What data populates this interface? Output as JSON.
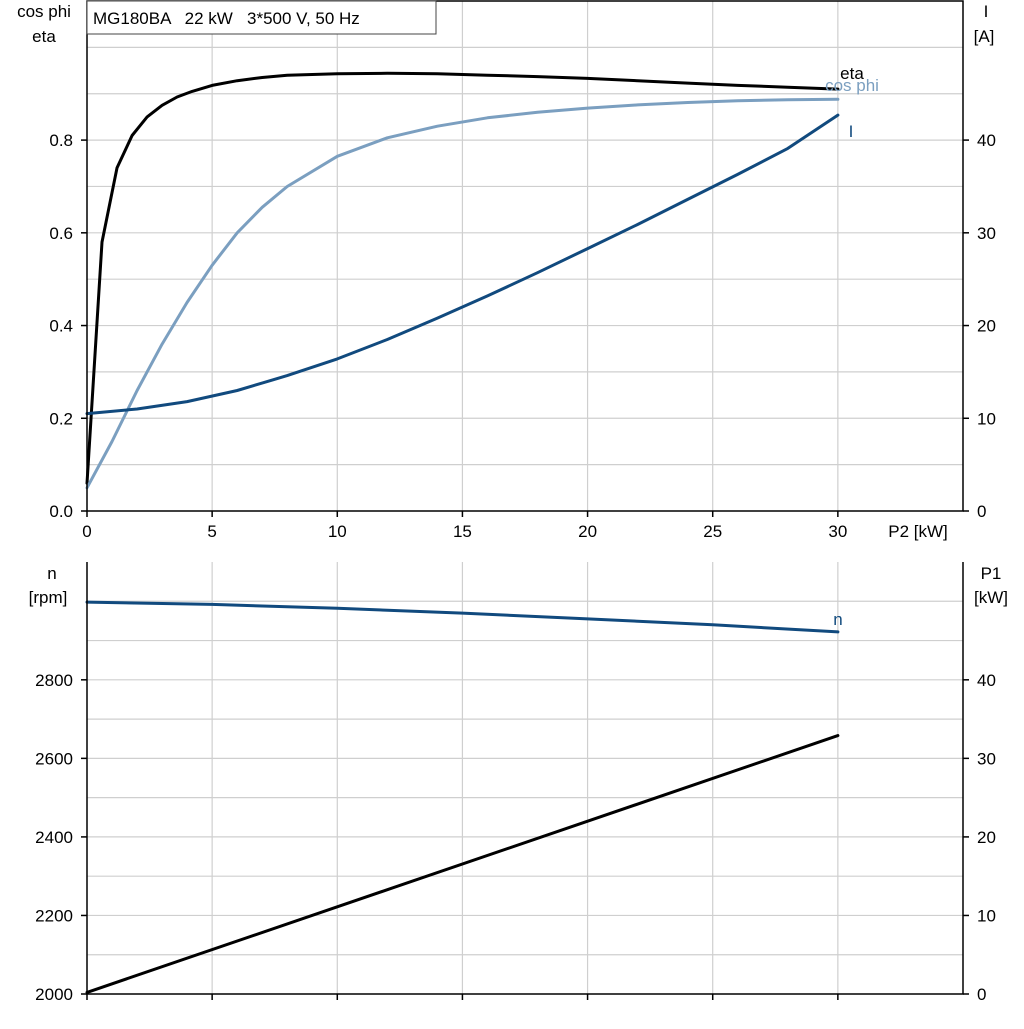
{
  "colors": {
    "black": "#000000",
    "light_blue": "#7b9fc0",
    "dark_blue": "#114a7e",
    "grid": "#cfcfcf"
  },
  "chart_data": [
    {
      "type": "line",
      "title": "MG180BA   22 kW   3*500 V, 50 Hz",
      "xlabel": "P2 [kW]",
      "ylabel_left": [
        "cos phi",
        "eta"
      ],
      "ylabel_right": [
        "I",
        "[A]"
      ],
      "xlim": [
        0,
        35
      ],
      "ylim_left": [
        0,
        1.1
      ],
      "ylim_right": [
        0,
        55
      ],
      "x_ticks": [
        "0",
        "5",
        "10",
        "15",
        "20",
        "25",
        "30"
      ],
      "y_left_ticks": [
        "0.0",
        "0.2",
        "0.4",
        "0.6",
        "0.8"
      ],
      "y_right_ticks": [
        "0",
        "10",
        "20",
        "30",
        "40"
      ],
      "grid": true,
      "series": [
        {
          "name": "eta",
          "axis": "left",
          "color": "black",
          "x": [
            0,
            0.6,
            1.2,
            1.8,
            2.4,
            3,
            3.6,
            4.2,
            5,
            6,
            7,
            8,
            10,
            12,
            14,
            16,
            18,
            20,
            22,
            24,
            26,
            28,
            30
          ],
          "y": [
            0.06,
            0.58,
            0.74,
            0.81,
            0.85,
            0.875,
            0.893,
            0.905,
            0.918,
            0.928,
            0.935,
            0.94,
            0.943,
            0.944,
            0.943,
            0.94,
            0.937,
            0.933,
            0.928,
            0.923,
            0.918,
            0.914,
            0.91
          ]
        },
        {
          "name": "cos phi",
          "axis": "left",
          "color": "light_blue",
          "x": [
            0,
            1,
            2,
            3,
            4,
            5,
            6,
            7,
            8,
            10,
            12,
            14,
            16,
            18,
            20,
            22,
            24,
            26,
            28,
            30
          ],
          "y": [
            0.05,
            0.15,
            0.26,
            0.36,
            0.45,
            0.53,
            0.6,
            0.655,
            0.7,
            0.765,
            0.805,
            0.83,
            0.848,
            0.86,
            0.869,
            0.876,
            0.881,
            0.885,
            0.887,
            0.888
          ]
        },
        {
          "name": "I",
          "axis": "right",
          "color": "dark_blue",
          "x": [
            0,
            2,
            4,
            6,
            8,
            10,
            12,
            14,
            16,
            18,
            20,
            22,
            24,
            26,
            28,
            30
          ],
          "y": [
            10.5,
            11,
            11.8,
            13,
            14.6,
            16.4,
            18.5,
            20.8,
            23.2,
            25.7,
            28.3,
            30.9,
            33.6,
            36.3,
            39.1,
            42.7
          ]
        }
      ]
    },
    {
      "type": "line",
      "xlim": [
        0,
        35
      ],
      "ylabel_left": [
        "n",
        "[rpm]"
      ],
      "ylabel_right": [
        "P1",
        "[kW]"
      ],
      "ylim_left": [
        2000,
        3100
      ],
      "ylim_right": [
        0,
        55
      ],
      "y_left_ticks": [
        "2000",
        "2200",
        "2400",
        "2600",
        "2800"
      ],
      "y_right_ticks": [
        "0",
        "10",
        "20",
        "30",
        "40"
      ],
      "grid": true,
      "series": [
        {
          "name": "n",
          "axis": "left",
          "color": "dark_blue",
          "x": [
            0,
            5,
            10,
            15,
            20,
            25,
            30
          ],
          "y": [
            2998,
            2992,
            2982,
            2970,
            2955,
            2940,
            2922
          ]
        },
        {
          "name": "",
          "axis": "right",
          "color": "black",
          "x": [
            0,
            30
          ],
          "y": [
            0.2,
            32.9
          ]
        }
      ]
    }
  ]
}
